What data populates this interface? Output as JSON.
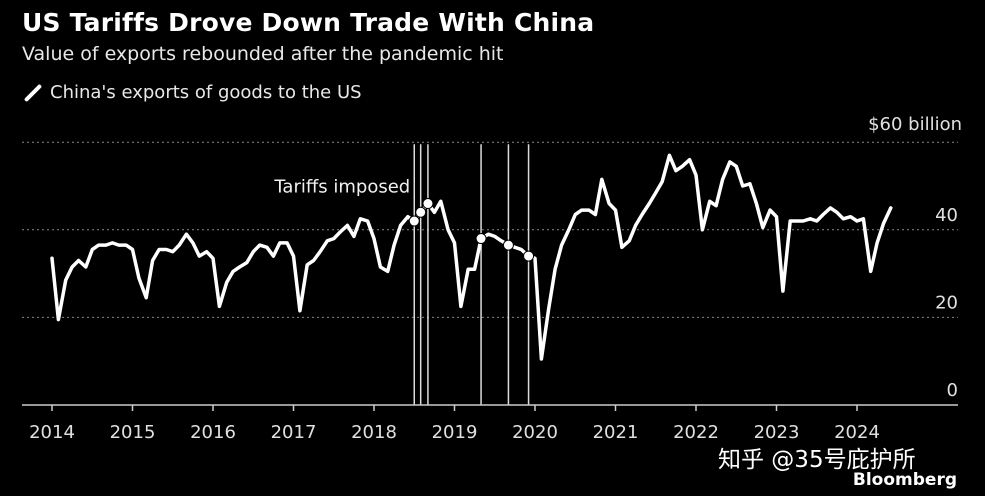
{
  "title": "US Tariffs Drove Down Trade With China",
  "subtitle": "Value of exports rebounded after the pandemic hit",
  "legend_label": "China's exports of goods to the US",
  "watermark": "知乎 @35号庇护所",
  "brand": "Bloomberg",
  "colors": {
    "background": "#000000",
    "line": "#ffffff",
    "grid": "#888888"
  },
  "chart_data": {
    "type": "line",
    "title": "US Tariffs Drove Down Trade With China",
    "subtitle": "Value of exports rebounded after the pandemic hit",
    "xlabel": "",
    "ylabel": "",
    "y_unit_label": "$60 billion",
    "ylim": [
      0,
      60
    ],
    "yticks": [
      0,
      20,
      40
    ],
    "xlim": [
      2014.0,
      2025.2
    ],
    "xticks": [
      "2014",
      "2015",
      "2016",
      "2017",
      "2018",
      "2019",
      "2020",
      "2021",
      "2022",
      "2023",
      "2024"
    ],
    "grid": "horizontal dotted",
    "annotation": "Tariffs imposed",
    "tariff_events": [
      2018.5,
      2018.58,
      2018.67,
      2019.33,
      2019.67,
      2019.92
    ],
    "series": [
      {
        "name": "China's exports of goods to the US",
        "x": [
          2014.0,
          2014.08,
          2014.17,
          2014.25,
          2014.33,
          2014.42,
          2014.5,
          2014.58,
          2014.67,
          2014.75,
          2014.83,
          2014.92,
          2015.0,
          2015.08,
          2015.17,
          2015.25,
          2015.33,
          2015.42,
          2015.5,
          2015.58,
          2015.67,
          2015.75,
          2015.83,
          2015.92,
          2016.0,
          2016.08,
          2016.17,
          2016.25,
          2016.33,
          2016.42,
          2016.5,
          2016.58,
          2016.67,
          2016.75,
          2016.83,
          2016.92,
          2017.0,
          2017.08,
          2017.17,
          2017.25,
          2017.33,
          2017.42,
          2017.5,
          2017.58,
          2017.67,
          2017.75,
          2017.83,
          2017.92,
          2018.0,
          2018.08,
          2018.17,
          2018.25,
          2018.33,
          2018.42,
          2018.5,
          2018.58,
          2018.67,
          2018.75,
          2018.83,
          2018.92,
          2019.0,
          2019.08,
          2019.17,
          2019.25,
          2019.33,
          2019.42,
          2019.5,
          2019.58,
          2019.67,
          2019.75,
          2019.83,
          2019.92,
          2020.0,
          2020.08,
          2020.17,
          2020.25,
          2020.33,
          2020.42,
          2020.5,
          2020.58,
          2020.67,
          2020.75,
          2020.83,
          2020.92,
          2021.0,
          2021.08,
          2021.17,
          2021.25,
          2021.33,
          2021.42,
          2021.5,
          2021.58,
          2021.67,
          2021.75,
          2021.83,
          2021.92,
          2022.0,
          2022.08,
          2022.17,
          2022.25,
          2022.33,
          2022.42,
          2022.5,
          2022.58,
          2022.67,
          2022.75,
          2022.83,
          2022.92,
          2023.0,
          2023.08,
          2023.17,
          2023.25,
          2023.33,
          2023.42,
          2023.5,
          2023.58,
          2023.67,
          2023.75,
          2023.83,
          2023.92,
          2024.0,
          2024.08,
          2024.17,
          2024.25,
          2024.33,
          2024.42
        ],
        "values": [
          33.5,
          19.5,
          28.5,
          31.5,
          33,
          31.5,
          35.5,
          36.5,
          36.5,
          37,
          36.5,
          36.5,
          35.5,
          29,
          24.5,
          33,
          35.5,
          35.5,
          35,
          36.5,
          39,
          37,
          34,
          35,
          33.5,
          22.5,
          28,
          30.5,
          31.5,
          32.5,
          35,
          36.5,
          36,
          34,
          37,
          37,
          34,
          21.5,
          32,
          33,
          35,
          37.5,
          38,
          39.5,
          41,
          38.5,
          42.5,
          42,
          38,
          31.5,
          30.5,
          36.5,
          41,
          43,
          42,
          44,
          46,
          44,
          46.5,
          40,
          37,
          22.5,
          31,
          31,
          38,
          39,
          38.5,
          37.5,
          36.5,
          36,
          35.5,
          34,
          33.5,
          10.5,
          22,
          31,
          36.5,
          40,
          43.5,
          44.5,
          44.5,
          43.5,
          51.5,
          46,
          44.5,
          36,
          37.5,
          41,
          43.5,
          46,
          48.5,
          51,
          57,
          53.5,
          54.5,
          56,
          52.5,
          40,
          46.5,
          45.5,
          51.5,
          55.5,
          54.5,
          50,
          50.5,
          46,
          40.5,
          44.5,
          43,
          26,
          42,
          42,
          42,
          42.5,
          42,
          43.5,
          45,
          44,
          42.5,
          43,
          42,
          42.5,
          30.5,
          37,
          41.5,
          45
        ]
      }
    ]
  }
}
